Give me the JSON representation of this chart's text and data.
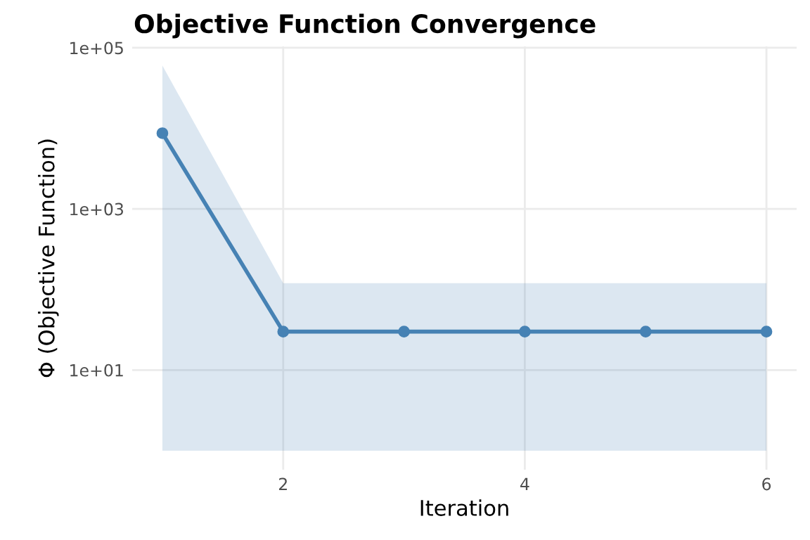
{
  "chart_data": {
    "type": "line",
    "title": "Objective Function Convergence",
    "xlabel": "Iteration",
    "ylabel": "Φ (Objective Function)",
    "x": [
      1,
      2,
      3,
      4,
      5,
      6
    ],
    "series": [
      {
        "color": "#4682b4",
        "values": [
          8700,
          30,
          30,
          30,
          30,
          30
        ],
        "lower": [
          1,
          1,
          1,
          1,
          1,
          1
        ],
        "upper": [
          60000,
          120,
          120,
          120,
          120,
          120
        ]
      }
    ],
    "log": "y",
    "xlim": [
      0.75,
      6.25
    ],
    "xticks": [
      2,
      4,
      6
    ],
    "ylim": [
      0.58,
      104000
    ],
    "yticks": [
      {
        "value": 10,
        "label": "1e+01"
      },
      {
        "value": 1000,
        "label": "1e+03"
      },
      {
        "value": 100000,
        "label": "1e+05"
      }
    ],
    "grid": true,
    "marker": "circle",
    "line_style": "solid"
  }
}
